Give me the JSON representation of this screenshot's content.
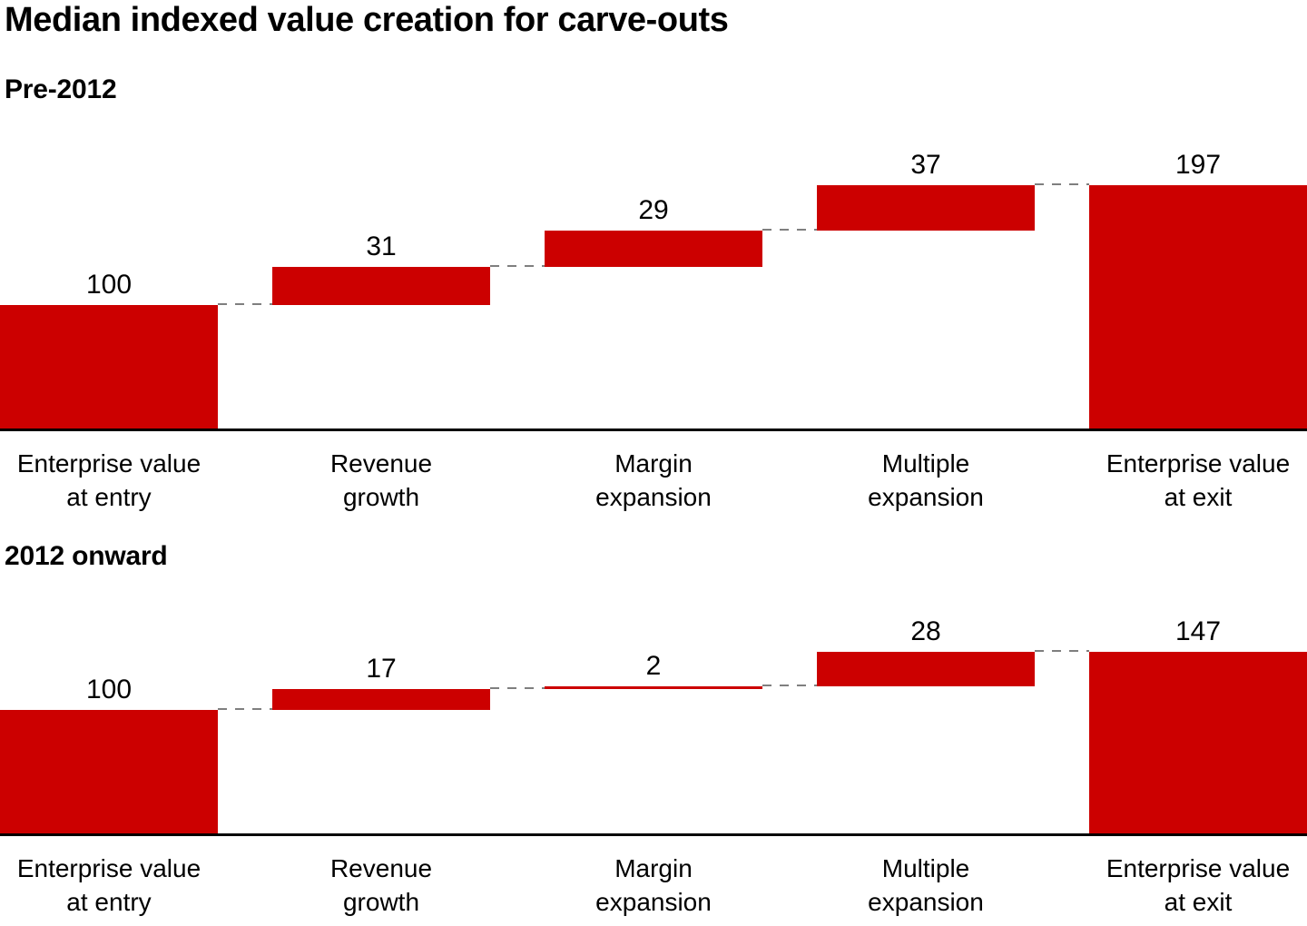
{
  "title": "Median indexed value creation for carve-outs",
  "style": {
    "bar_color": "#cc0000",
    "connector_color": "#7f7f7f",
    "baseline_color": "#000000",
    "text_color": "#000000"
  },
  "chart_data": [
    {
      "type": "waterfall",
      "title": "Pre-2012",
      "categories": [
        "Enterprise value at entry",
        "Revenue growth",
        "Margin expansion",
        "Multiple expansion",
        "Enterprise value at exit"
      ],
      "steps": [
        {
          "label_line1": "Enterprise value",
          "label_line2": "at entry",
          "value": 100,
          "kind": "start"
        },
        {
          "label_line1": "Revenue",
          "label_line2": "growth",
          "value": 31,
          "kind": "delta"
        },
        {
          "label_line1": "Margin",
          "label_line2": "expansion",
          "value": 29,
          "kind": "delta"
        },
        {
          "label_line1": "Multiple",
          "label_line2": "expansion",
          "value": 37,
          "kind": "delta"
        },
        {
          "label_line1": "Enterprise value",
          "label_line2": "at exit",
          "value": 197,
          "kind": "total"
        }
      ],
      "ylim": [
        0,
        210
      ],
      "gridlines": false,
      "connector_style": "dashed"
    },
    {
      "type": "waterfall",
      "title": "2012 onward",
      "categories": [
        "Enterprise value at entry",
        "Revenue growth",
        "Margin expansion",
        "Multiple expansion",
        "Enterprise value at exit"
      ],
      "steps": [
        {
          "label_line1": "Enterprise value",
          "label_line2": "at entry",
          "value": 100,
          "kind": "start"
        },
        {
          "label_line1": "Revenue",
          "label_line2": "growth",
          "value": 17,
          "kind": "delta"
        },
        {
          "label_line1": "Margin",
          "label_line2": "expansion",
          "value": 2,
          "kind": "delta"
        },
        {
          "label_line1": "Multiple",
          "label_line2": "expansion",
          "value": 28,
          "kind": "delta"
        },
        {
          "label_line1": "Enterprise value",
          "label_line2": "at exit",
          "value": 147,
          "kind": "total"
        }
      ],
      "ylim": [
        0,
        210
      ],
      "gridlines": false,
      "connector_style": "dashed"
    }
  ]
}
